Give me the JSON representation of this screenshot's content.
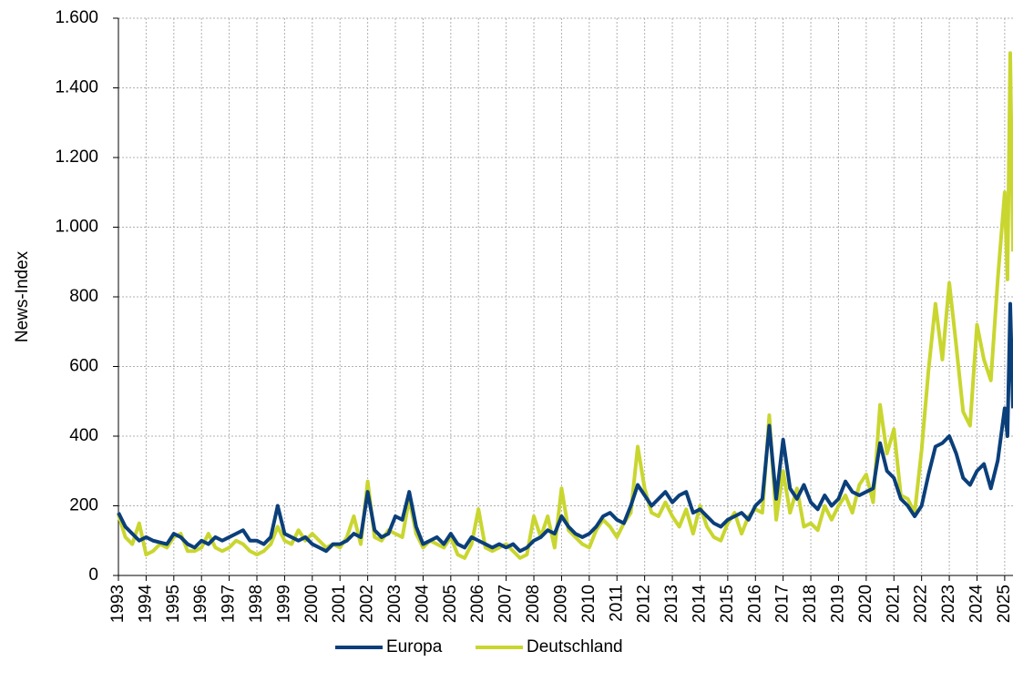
{
  "chart_data": {
    "type": "line",
    "y_label": "News-Index",
    "x": [
      1993,
      1993.25,
      1993.5,
      1993.75,
      1994,
      1994.25,
      1994.5,
      1994.75,
      1995,
      1995.25,
      1995.5,
      1995.75,
      1996,
      1996.25,
      1996.5,
      1996.75,
      1997,
      1997.25,
      1997.5,
      1997.75,
      1998,
      1998.25,
      1998.5,
      1998.75,
      1999,
      1999.25,
      1999.5,
      1999.75,
      2000,
      2000.25,
      2000.5,
      2000.75,
      2001,
      2001.25,
      2001.5,
      2001.75,
      2002,
      2002.25,
      2002.5,
      2002.75,
      2003,
      2003.25,
      2003.5,
      2003.75,
      2004,
      2004.25,
      2004.5,
      2004.75,
      2005,
      2005.25,
      2005.5,
      2005.75,
      2006,
      2006.25,
      2006.5,
      2006.75,
      2007,
      2007.25,
      2007.5,
      2007.75,
      2008,
      2008.25,
      2008.5,
      2008.75,
      2009,
      2009.25,
      2009.5,
      2009.75,
      2010,
      2010.25,
      2010.5,
      2010.75,
      2011,
      2011.25,
      2011.5,
      2011.75,
      2012,
      2012.25,
      2012.5,
      2012.75,
      2013,
      2013.25,
      2013.5,
      2013.75,
      2014,
      2014.25,
      2014.5,
      2014.75,
      2015,
      2015.25,
      2015.5,
      2015.75,
      2016,
      2016.25,
      2016.5,
      2016.75,
      2017,
      2017.25,
      2017.5,
      2017.75,
      2018,
      2018.25,
      2018.5,
      2018.75,
      2019,
      2019.25,
      2019.5,
      2019.75,
      2020,
      2020.25,
      2020.5,
      2020.75,
      2021,
      2021.25,
      2021.5,
      2021.75,
      2022,
      2022.25,
      2022.5,
      2022.75,
      2023,
      2023.25,
      2023.5,
      2023.75,
      2024,
      2024.25,
      2024.5,
      2024.75,
      2025,
      2025.1,
      2025.2,
      2025.3
    ],
    "series": [
      {
        "name": "Europa",
        "color": "#0b3f7a",
        "values": [
          180,
          140,
          120,
          100,
          110,
          100,
          95,
          90,
          120,
          110,
          90,
          80,
          100,
          90,
          110,
          100,
          110,
          120,
          130,
          100,
          100,
          90,
          110,
          200,
          120,
          110,
          100,
          110,
          90,
          80,
          70,
          90,
          90,
          100,
          120,
          110,
          240,
          130,
          110,
          120,
          170,
          160,
          240,
          140,
          90,
          100,
          110,
          90,
          120,
          90,
          80,
          110,
          100,
          90,
          80,
          90,
          80,
          90,
          70,
          80,
          100,
          110,
          130,
          120,
          170,
          140,
          120,
          110,
          120,
          140,
          170,
          180,
          160,
          150,
          200,
          260,
          230,
          200,
          220,
          240,
          210,
          230,
          240,
          180,
          190,
          170,
          150,
          140,
          160,
          170,
          180,
          160,
          200,
          220,
          430,
          220,
          390,
          250,
          220,
          260,
          210,
          190,
          230,
          200,
          220,
          270,
          240,
          230,
          240,
          250,
          380,
          300,
          280,
          220,
          200,
          170,
          200,
          290,
          370,
          380,
          400,
          350,
          280,
          260,
          300,
          320,
          250,
          330,
          480,
          400,
          780,
          480
        ]
      },
      {
        "name": "Deutschland",
        "color": "#c9d62f",
        "values": [
          175,
          110,
          90,
          150,
          60,
          70,
          90,
          80,
          110,
          120,
          70,
          70,
          80,
          120,
          80,
          70,
          80,
          100,
          90,
          70,
          60,
          70,
          90,
          140,
          100,
          90,
          130,
          100,
          120,
          100,
          80,
          90,
          80,
          110,
          170,
          90,
          270,
          110,
          100,
          130,
          120,
          110,
          220,
          120,
          80,
          100,
          90,
          80,
          110,
          60,
          50,
          90,
          190,
          80,
          70,
          80,
          90,
          70,
          50,
          60,
          170,
          110,
          170,
          80,
          250,
          130,
          110,
          90,
          80,
          130,
          160,
          140,
          110,
          150,
          180,
          370,
          250,
          180,
          170,
          210,
          170,
          140,
          190,
          120,
          200,
          140,
          110,
          100,
          150,
          180,
          120,
          170,
          190,
          180,
          460,
          160,
          300,
          180,
          250,
          140,
          150,
          130,
          200,
          160,
          200,
          230,
          180,
          260,
          290,
          210,
          490,
          350,
          420,
          230,
          220,
          180,
          360,
          590,
          780,
          620,
          840,
          660,
          470,
          430,
          720,
          620,
          560,
          850,
          1100,
          850,
          1500,
          930
        ]
      }
    ],
    "xlim": [
      1993,
      2025.3
    ],
    "xticks": [
      1993,
      1994,
      1995,
      1996,
      1997,
      1998,
      1999,
      2000,
      2001,
      2002,
      2003,
      2004,
      2005,
      2006,
      2007,
      2008,
      2009,
      2010,
      2011,
      2012,
      2013,
      2014,
      2015,
      2016,
      2017,
      2018,
      2019,
      2020,
      2021,
      2022,
      2023,
      2024,
      2025
    ],
    "ylim": [
      0,
      1600
    ],
    "yticks": [
      0,
      200,
      400,
      600,
      800,
      {
        "value": 1000,
        "label": "1.000"
      },
      {
        "value": 1200,
        "label": "1.200"
      },
      {
        "value": 1400,
        "label": "1.400"
      },
      {
        "value": 1600,
        "label": "1.600"
      }
    ],
    "grid": true,
    "legend": "bottom"
  }
}
